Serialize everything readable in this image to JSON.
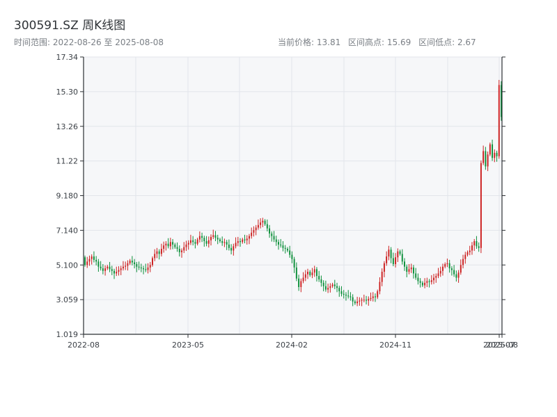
{
  "header": {
    "title": "300591.SZ 周K线图",
    "range_text": "时间范围: 2022-08-26 至 2025-08-08",
    "current_price_text": "当前价格: 13.81",
    "high_text": "区间高点: 15.69",
    "low_text": "区间低点: 2.67"
  },
  "colors": {
    "up": "#cc1f1f",
    "down": "#0c8f3a",
    "plot_bg": "#f6f7f9",
    "grid": "#e2e5ea",
    "axis": "#2b2f33"
  },
  "chart_data": {
    "type": "candlestick",
    "title": "300591.SZ 周K线图",
    "ylim": [
      1.019,
      17.34
    ],
    "yticks": [
      "1.019",
      "3.059",
      "5.100",
      "7.140",
      "9.180",
      "11.22",
      "13.26",
      "15.30",
      "17.34"
    ],
    "xticks": [
      "2022-08",
      "2023-05",
      "2024-02",
      "2024-11",
      "2025-07",
      "2025-08"
    ],
    "grid": true,
    "series": [
      {
        "closes": [
          5.1,
          5.3,
          5.45,
          5.6,
          5.4,
          5.3,
          5.0,
          4.9,
          4.75,
          4.9,
          5.0,
          4.85,
          4.75,
          4.6,
          4.7,
          4.8,
          4.9,
          5.0,
          5.05,
          5.2,
          5.35,
          5.25,
          5.15,
          5.0,
          4.95,
          4.9,
          4.85,
          4.8,
          4.95,
          5.1,
          5.5,
          5.75,
          5.9,
          5.75,
          6.05,
          6.25,
          6.35,
          6.2,
          6.45,
          6.3,
          6.15,
          6.05,
          5.85,
          5.95,
          6.15,
          6.3,
          6.4,
          6.55,
          6.45,
          6.35,
          6.6,
          6.8,
          6.7,
          6.5,
          6.35,
          6.55,
          6.75,
          6.85,
          6.7,
          6.6,
          6.5,
          6.4,
          6.45,
          6.3,
          6.1,
          5.95,
          6.2,
          6.4,
          6.5,
          6.45,
          6.6,
          6.55,
          6.65,
          6.8,
          7.0,
          7.15,
          7.3,
          7.45,
          7.6,
          7.7,
          7.5,
          7.25,
          6.95,
          6.8,
          6.6,
          6.45,
          6.3,
          6.25,
          6.1,
          6.05,
          5.95,
          5.7,
          5.45,
          4.95,
          4.3,
          3.8,
          4.15,
          4.35,
          4.55,
          4.7,
          4.5,
          4.65,
          4.85,
          4.45,
          4.25,
          4.05,
          3.85,
          3.65,
          3.75,
          3.85,
          3.95,
          3.85,
          3.75,
          3.55,
          3.4,
          3.35,
          3.3,
          3.25,
          3.2,
          2.95,
          2.85,
          2.95,
          3.0,
          3.05,
          3.05,
          3.0,
          3.1,
          3.15,
          3.25,
          3.2,
          3.55,
          4.1,
          4.7,
          5.2,
          5.6,
          6.0,
          5.5,
          5.15,
          5.55,
          5.9,
          5.75,
          5.3,
          5.0,
          4.7,
          4.85,
          4.95,
          4.6,
          4.35,
          4.15,
          4.05,
          3.9,
          4.05,
          4.15,
          4.1,
          4.2,
          4.35,
          4.45,
          4.6,
          4.75,
          5.0,
          5.15,
          5.2,
          4.9,
          4.8,
          4.55,
          4.35,
          4.65,
          5.1,
          5.45,
          5.7,
          5.85,
          5.95,
          6.25,
          6.5,
          6.2,
          6.1,
          11.1,
          11.8,
          10.9,
          11.6,
          12.2,
          11.4,
          11.7,
          11.5,
          15.69,
          13.81
        ],
        "wick_extension_high": 0.25,
        "wick_extension_low": 0.25
      }
    ],
    "period": "weekly",
    "start_date": "2022-08-26",
    "end_date": "2025-08-08",
    "current_price": 13.81,
    "period_high": 15.69,
    "period_low": 2.67
  }
}
